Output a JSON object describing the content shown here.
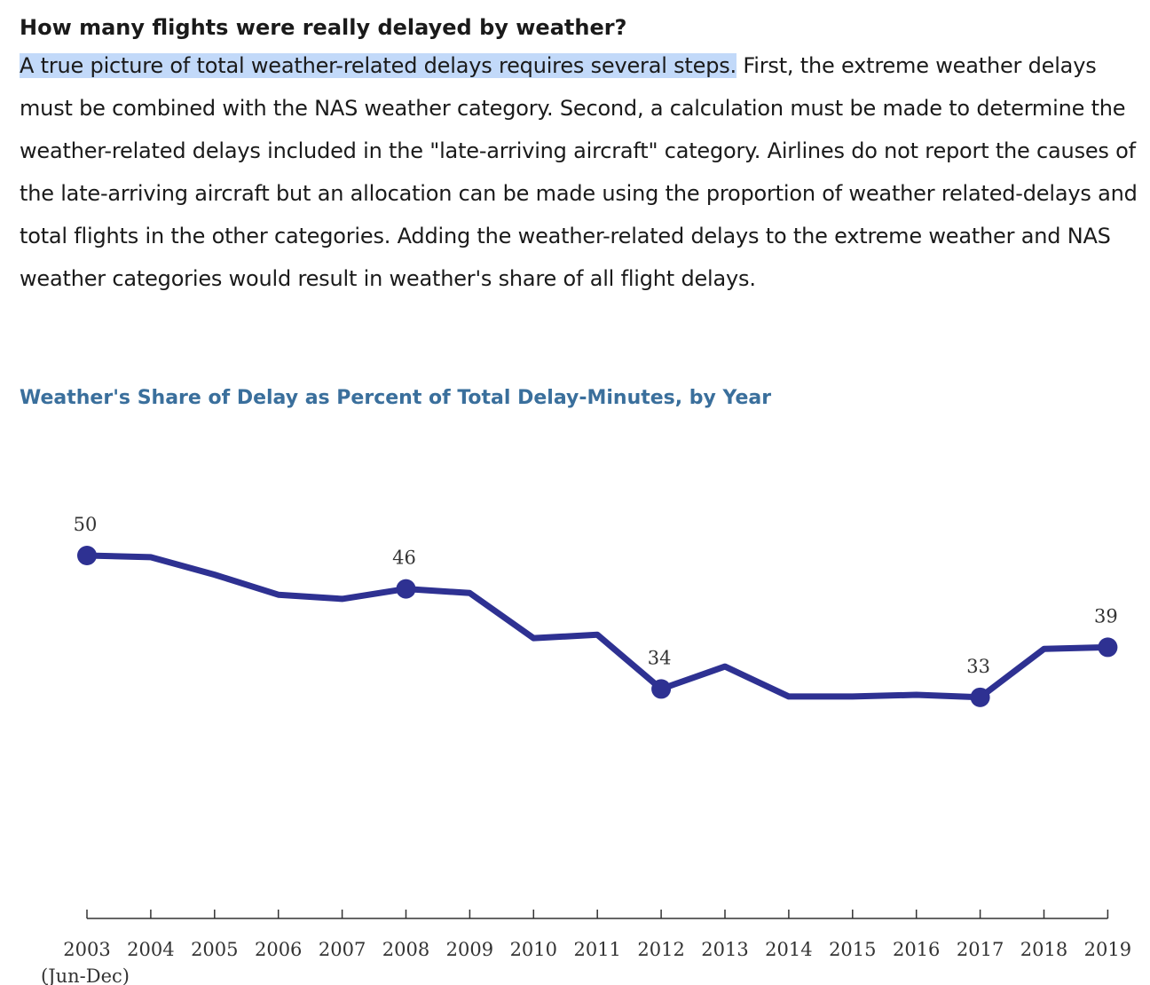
{
  "article": {
    "heading": "How many flights were really delayed by weather?",
    "highlighted_sentence": "A true picture of total weather-related delays requires several steps.",
    "body_text": " First, the extreme weather delays must be combined with the NAS weather category. Second, a calculation must be made to determine the weather-related delays included in the \"late-arriving aircraft\" category. Airlines do not report the causes of the late-arriving aircraft but an allocation can be made using the proportion of weather related-delays and total flights in the other categories. Adding the weather-related delays to the extreme weather and NAS weather categories would result in weather's share of all flight delays."
  },
  "chart_data": {
    "type": "line",
    "title": "Weather's Share of Delay as Percent of Total Delay-Minutes, by Year",
    "categories": [
      "2003",
      "2004",
      "2005",
      "2006",
      "2007",
      "2008",
      "2009",
      "2010",
      "2011",
      "2012",
      "2013",
      "2014",
      "2015",
      "2016",
      "2017",
      "2018",
      "2019"
    ],
    "category_sublabels": {
      "2003": "(Jun-Dec)"
    },
    "series": [
      {
        "values": [
          50,
          49.8,
          47.7,
          45.3,
          44.8,
          46,
          45.5,
          40.1,
          40.5,
          34,
          36.7,
          33.1,
          33.1,
          33.3,
          33,
          38.8,
          39
        ],
        "color": "#2e3192"
      }
    ],
    "labeled_points": [
      {
        "category": "2003",
        "label": "50"
      },
      {
        "category": "2008",
        "label": "46"
      },
      {
        "category": "2012",
        "label": "34"
      },
      {
        "category": "2017",
        "label": "33"
      },
      {
        "category": "2019",
        "label": "39"
      }
    ],
    "ylim": [
      6.5,
      50
    ],
    "grid": false,
    "legend": "none"
  }
}
